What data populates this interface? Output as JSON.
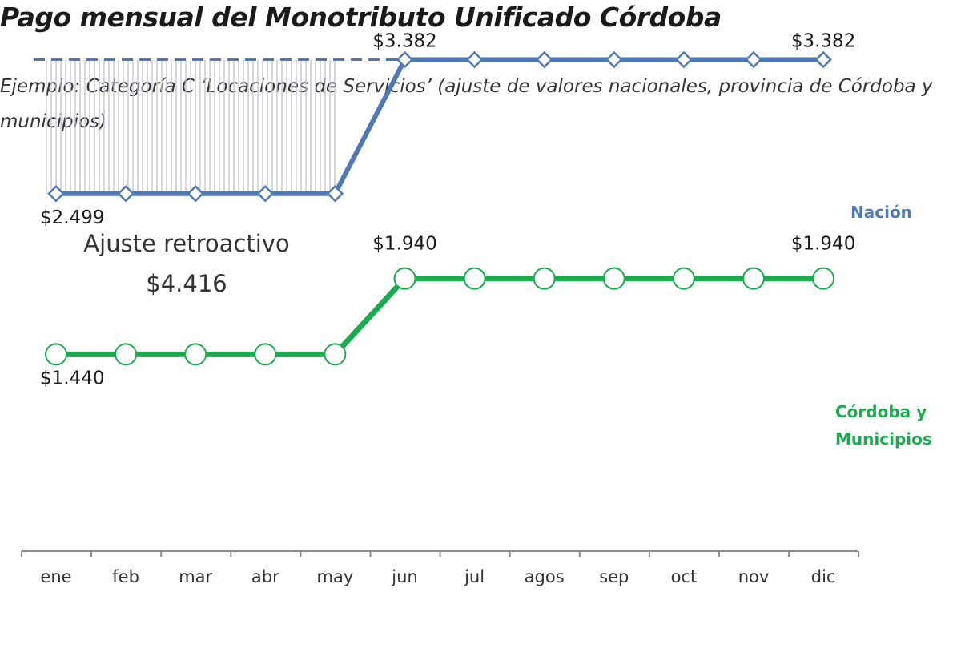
{
  "title": "Pago mensual del Monotributo Unificado Córdoba",
  "subtitle": "Ejemplo: Categoría C ‘Locaciones de Servicios’  (ajuste de valores nacionales, provincia de Córdoba y municipios)",
  "chart_data": {
    "type": "line",
    "categories": [
      "ene",
      "feb",
      "mar",
      "abr",
      "may",
      "jun",
      "jul",
      "agos",
      "sep",
      "oct",
      "nov",
      "dic"
    ],
    "series": [
      {
        "name": "Nación",
        "values": [
          2499,
          2499,
          2499,
          2499,
          2499,
          3382,
          3382,
          3382,
          3382,
          3382,
          3382,
          3382
        ],
        "color": "#4f79b5",
        "marker": "diamond"
      },
      {
        "name": "Córdoba y Municipios",
        "values": [
          1440,
          1440,
          1440,
          1440,
          1440,
          1940,
          1940,
          1940,
          1940,
          1940,
          1940,
          1940
        ],
        "color": "#1aab4f",
        "marker": "circle"
      }
    ],
    "data_labels": [
      {
        "series": 0,
        "index": 0,
        "text": "$2.499"
      },
      {
        "series": 0,
        "index": 5,
        "text": "$3.382"
      },
      {
        "series": 0,
        "index": 11,
        "text": "$3.382"
      },
      {
        "series": 1,
        "index": 0,
        "text": "$1.440"
      },
      {
        "series": 1,
        "index": 5,
        "text": "$1.940"
      },
      {
        "series": 1,
        "index": 11,
        "text": "$1.940"
      }
    ],
    "series_labels": [
      {
        "series": 0,
        "lines": [
          "Nación"
        ]
      },
      {
        "series": 1,
        "lines": [
          "Córdoba y",
          "Municipios"
        ]
      }
    ],
    "annotation": {
      "lines": [
        "Ajuste retroactivo",
        "$4.416"
      ],
      "from_index": 0,
      "to_index": 4,
      "dashed_level": 3382
    },
    "ylim": [
      1000,
      3500
    ],
    "grid": false,
    "legend": "none"
  }
}
